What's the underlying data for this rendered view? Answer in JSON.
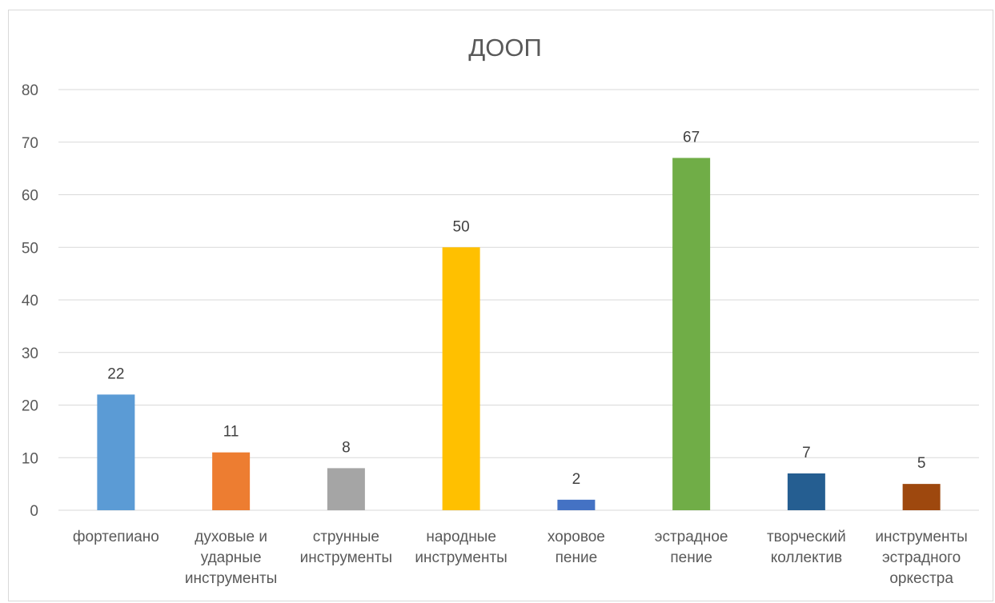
{
  "chart_data": {
    "type": "bar",
    "title": "ДООП",
    "xlabel": "",
    "ylabel": "",
    "ylim": [
      0,
      80
    ],
    "yticks": [
      "0",
      "10",
      "20",
      "30",
      "40",
      "50",
      "60",
      "70",
      "80"
    ],
    "grid": true,
    "legend": "none",
    "categories": [
      [
        "фортепиано"
      ],
      [
        "духовые и",
        "ударные",
        "инструменты"
      ],
      [
        "струнные",
        "инструменты"
      ],
      [
        "народные",
        "инструменты"
      ],
      [
        "хоровое",
        "пение"
      ],
      [
        "эстрадное",
        "пение"
      ],
      [
        "творческий",
        "коллектив"
      ],
      [
        "инструменты",
        "эстрадного",
        "оркестра"
      ]
    ],
    "values": [
      22,
      11,
      8,
      50,
      2,
      67,
      7,
      5
    ],
    "colors": [
      "#5b9bd5",
      "#ed7d31",
      "#a5a5a5",
      "#ffc000",
      "#4472c4",
      "#70ad47",
      "#255e91",
      "#9e480e"
    ]
  }
}
